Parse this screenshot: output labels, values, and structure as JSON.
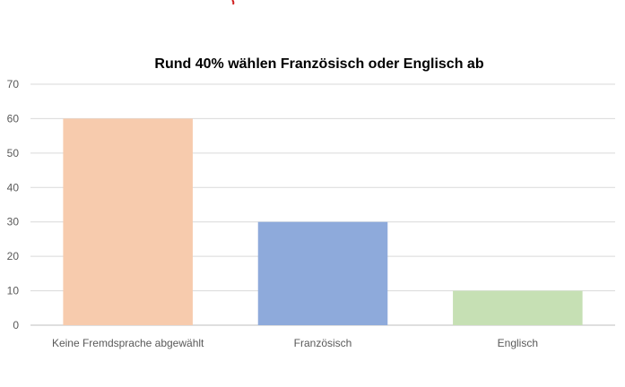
{
  "chart_data": {
    "type": "bar",
    "title": "Rund 40% wählen Französisch oder Englisch ab",
    "categories": [
      "Keine Fremdsprache abgewählt",
      "Französisch",
      "Englisch"
    ],
    "values": [
      60,
      30,
      10
    ],
    "colors": [
      "#f7cbad",
      "#8eaadb",
      "#c6e0b4"
    ],
    "yticks": [
      "0",
      "10",
      "20",
      "30",
      "40",
      "50",
      "60",
      "70"
    ],
    "ylim": [
      0,
      70
    ],
    "grid": true,
    "legend": "none"
  }
}
